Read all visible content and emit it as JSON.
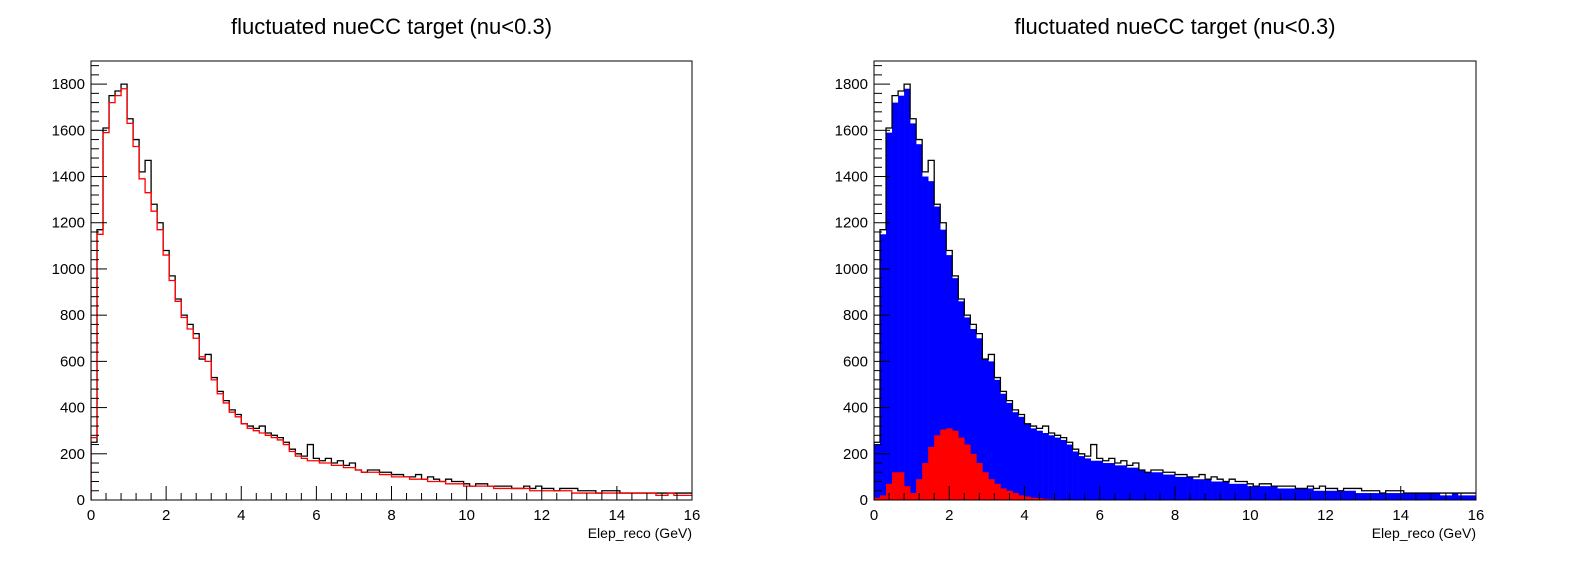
{
  "chart_data": [
    {
      "type": "histogram",
      "title": "fluctuated nueCC target (nu<0.3)",
      "xlabel": "Elep_reco (GeV)",
      "ylabel": "",
      "xlim": [
        0,
        16
      ],
      "ylim": [
        0,
        1900
      ],
      "x_ticks": [
        0,
        2,
        4,
        6,
        8,
        10,
        12,
        14,
        16
      ],
      "y_ticks": [
        0,
        200,
        400,
        600,
        800,
        1000,
        1200,
        1400,
        1600,
        1800
      ],
      "bin_width": 0.16,
      "series": [
        {
          "color": "#000000",
          "style": "step",
          "values": [
            250,
            1170,
            1610,
            1750,
            1770,
            1800,
            1650,
            1560,
            1420,
            1470,
            1280,
            1200,
            1080,
            970,
            870,
            800,
            760,
            720,
            610,
            630,
            530,
            470,
            430,
            390,
            370,
            330,
            320,
            310,
            320,
            290,
            280,
            270,
            250,
            220,
            200,
            190,
            240,
            180,
            170,
            180,
            160,
            170,
            150,
            160,
            130,
            120,
            130,
            130,
            120,
            120,
            110,
            110,
            100,
            100,
            110,
            90,
            100,
            90,
            80,
            90,
            80,
            80,
            70,
            60,
            70,
            70,
            60,
            60,
            60,
            60,
            50,
            50,
            60,
            50,
            60,
            50,
            50,
            40,
            50,
            50,
            50,
            40,
            40,
            40,
            30,
            40,
            40,
            40,
            30,
            30,
            30,
            30,
            30,
            30,
            30,
            30,
            30,
            30,
            30,
            30
          ]
        },
        {
          "color": "#ff0000",
          "style": "step",
          "values": [
            270,
            1150,
            1590,
            1720,
            1750,
            1780,
            1630,
            1530,
            1390,
            1330,
            1250,
            1170,
            1060,
            950,
            860,
            790,
            740,
            700,
            620,
            600,
            520,
            460,
            420,
            380,
            360,
            330,
            310,
            300,
            290,
            280,
            270,
            260,
            240,
            210,
            190,
            180,
            170,
            170,
            160,
            160,
            150,
            150,
            140,
            140,
            130,
            120,
            120,
            120,
            110,
            110,
            100,
            100,
            100,
            90,
            90,
            90,
            80,
            80,
            80,
            70,
            70,
            70,
            60,
            60,
            60,
            60,
            60,
            50,
            50,
            50,
            50,
            50,
            50,
            40,
            40,
            40,
            40,
            40,
            40,
            40,
            30,
            30,
            30,
            30,
            30,
            30,
            30,
            30,
            30,
            30,
            30,
            30,
            30,
            30,
            20,
            20,
            30,
            20,
            20,
            20
          ]
        }
      ]
    },
    {
      "type": "histogram",
      "title": "fluctuated nueCC target (nu<0.3)",
      "xlabel": "Elep_reco (GeV)",
      "ylabel": "",
      "xlim": [
        0,
        16
      ],
      "ylim": [
        0,
        1900
      ],
      "x_ticks": [
        0,
        2,
        4,
        6,
        8,
        10,
        12,
        14,
        16
      ],
      "y_ticks": [
        0,
        200,
        400,
        600,
        800,
        1000,
        1200,
        1400,
        1600,
        1800
      ],
      "bin_width": 0.16,
      "series": [
        {
          "color": "#0000ff",
          "style": "filled",
          "values": [
            240,
            1150,
            1590,
            1720,
            1750,
            1780,
            1630,
            1540,
            1400,
            1380,
            1270,
            1170,
            1060,
            960,
            860,
            790,
            740,
            700,
            610,
            600,
            520,
            460,
            420,
            380,
            360,
            330,
            310,
            300,
            290,
            280,
            270,
            260,
            240,
            210,
            190,
            180,
            170,
            170,
            160,
            160,
            150,
            150,
            140,
            140,
            130,
            120,
            120,
            120,
            110,
            110,
            100,
            100,
            100,
            90,
            90,
            90,
            80,
            80,
            80,
            70,
            70,
            70,
            60,
            60,
            60,
            60,
            60,
            50,
            50,
            50,
            50,
            50,
            50,
            40,
            40,
            40,
            40,
            40,
            40,
            40,
            30,
            30,
            30,
            30,
            30,
            30,
            30,
            30,
            30,
            30,
            30,
            30,
            30,
            30,
            20,
            20,
            30,
            20,
            20,
            20
          ]
        },
        {
          "color": "#ff0000",
          "style": "filled",
          "values": [
            10,
            20,
            70,
            120,
            120,
            60,
            30,
            90,
            160,
            230,
            280,
            305,
            310,
            300,
            270,
            240,
            200,
            160,
            120,
            90,
            70,
            50,
            40,
            30,
            20,
            15,
            10,
            8,
            5,
            4,
            3,
            2,
            2,
            1,
            1,
            1,
            0,
            0,
            0,
            0,
            0,
            0,
            0,
            0,
            0,
            0,
            0,
            0,
            0,
            0,
            0,
            0,
            0,
            0,
            0,
            0,
            0,
            0,
            0,
            0,
            0,
            0,
            0,
            0,
            0,
            0,
            0,
            0,
            0,
            0,
            0,
            0,
            0,
            0,
            0,
            0,
            0,
            0,
            0,
            0,
            0,
            0,
            0,
            0,
            0,
            0,
            0,
            0,
            0,
            0,
            0,
            0,
            0,
            0,
            0,
            0,
            0,
            0,
            0,
            0
          ]
        },
        {
          "color": "#000000",
          "style": "step",
          "values": [
            250,
            1170,
            1610,
            1750,
            1770,
            1800,
            1650,
            1560,
            1420,
            1470,
            1280,
            1200,
            1080,
            970,
            870,
            800,
            760,
            720,
            610,
            630,
            530,
            470,
            430,
            390,
            370,
            330,
            320,
            310,
            320,
            290,
            280,
            270,
            250,
            220,
            200,
            190,
            240,
            180,
            170,
            180,
            160,
            170,
            150,
            160,
            130,
            120,
            130,
            130,
            120,
            120,
            110,
            110,
            100,
            100,
            110,
            90,
            100,
            90,
            80,
            90,
            80,
            80,
            70,
            60,
            70,
            70,
            60,
            60,
            60,
            60,
            50,
            50,
            60,
            50,
            60,
            50,
            50,
            40,
            50,
            50,
            50,
            40,
            40,
            40,
            30,
            40,
            40,
            40,
            30,
            30,
            30,
            30,
            30,
            30,
            30,
            30,
            30,
            30,
            30,
            30
          ]
        }
      ]
    }
  ]
}
